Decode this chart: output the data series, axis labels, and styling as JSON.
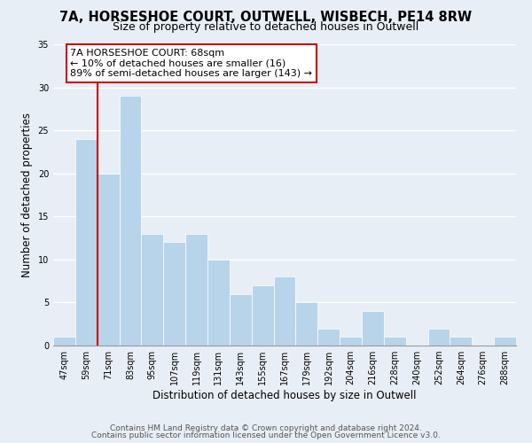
{
  "title": "7A, HORSESHOE COURT, OUTWELL, WISBECH, PE14 8RW",
  "subtitle": "Size of property relative to detached houses in Outwell",
  "xlabel": "Distribution of detached houses by size in Outwell",
  "ylabel": "Number of detached properties",
  "bar_labels": [
    "47sqm",
    "59sqm",
    "71sqm",
    "83sqm",
    "95sqm",
    "107sqm",
    "119sqm",
    "131sqm",
    "143sqm",
    "155sqm",
    "167sqm",
    "179sqm",
    "192sqm",
    "204sqm",
    "216sqm",
    "228sqm",
    "240sqm",
    "252sqm",
    "264sqm",
    "276sqm",
    "288sqm"
  ],
  "bar_values": [
    1,
    24,
    20,
    29,
    13,
    12,
    13,
    10,
    6,
    7,
    8,
    5,
    2,
    1,
    4,
    1,
    0,
    2,
    1,
    0,
    1
  ],
  "bar_color": "#b8d4ea",
  "bar_edge_color": "#ffffff",
  "vline_color": "#cc0000",
  "annotation_text": "7A HORSESHOE COURT: 68sqm\n← 10% of detached houses are smaller (16)\n89% of semi-detached houses are larger (143) →",
  "annotation_box_facecolor": "#ffffff",
  "annotation_box_edge": "#cc0000",
  "ylim": [
    0,
    35
  ],
  "yticks": [
    0,
    5,
    10,
    15,
    20,
    25,
    30,
    35
  ],
  "footer1": "Contains HM Land Registry data © Crown copyright and database right 2024.",
  "footer2": "Contains public sector information licensed under the Open Government Licence v3.0.",
  "bg_color": "#e8eef5",
  "plot_bg_color": "#e8eef5",
  "grid_color": "#ffffff",
  "title_fontsize": 10.5,
  "subtitle_fontsize": 9,
  "axis_label_fontsize": 8.5,
  "tick_fontsize": 7,
  "footer_fontsize": 6.5,
  "annotation_fontsize": 8
}
